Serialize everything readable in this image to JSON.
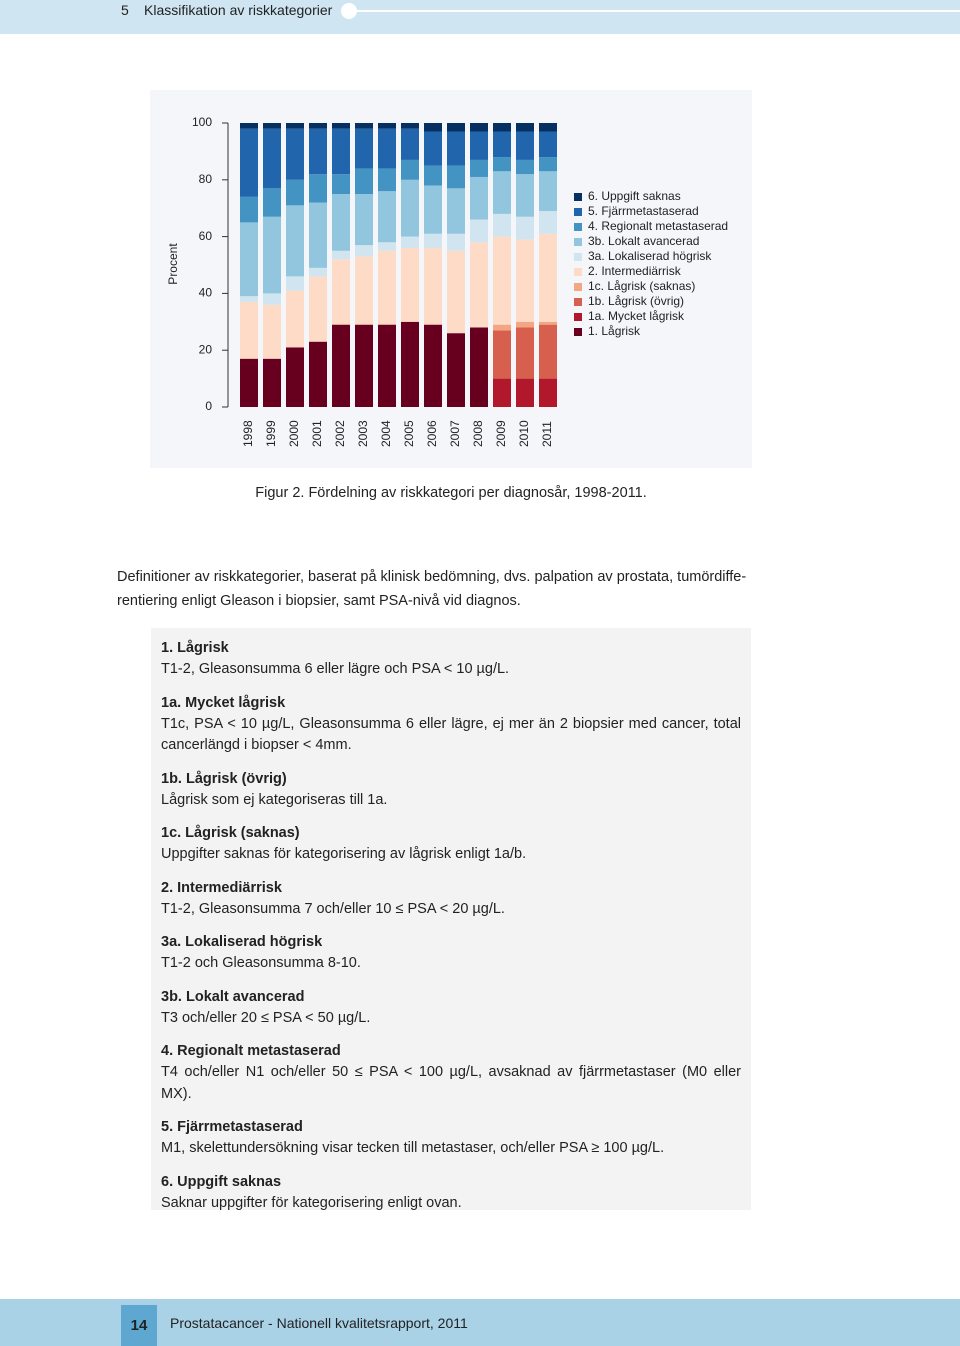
{
  "header": {
    "section": "5",
    "title": "Klassifikation av riskkategorier"
  },
  "chart_data": {
    "type": "stacked-bar",
    "y_label": "Procent",
    "categories": [
      "1998",
      "1999",
      "2000",
      "2001",
      "2002",
      "2003",
      "2004",
      "2005",
      "2006",
      "2007",
      "2008",
      "2009",
      "2010",
      "2011"
    ],
    "ylim": [
      0,
      100
    ],
    "yticks": [
      0,
      20,
      40,
      60,
      80,
      100
    ],
    "series": [
      {
        "name": "1. Lågrisk",
        "color": "#67001f",
        "values": [
          17,
          17,
          21,
          23,
          29,
          29,
          29,
          30,
          29,
          26,
          28,
          0,
          0,
          0
        ]
      },
      {
        "name": "1a. Mycket lågrisk",
        "color": "#b2182b",
        "values": [
          0,
          0,
          0,
          0,
          0,
          0,
          0,
          0,
          0,
          0,
          0,
          10,
          10,
          10
        ]
      },
      {
        "name": "1b. Lågrisk (övrig)",
        "color": "#d6604d",
        "values": [
          0,
          0,
          0,
          0,
          0,
          0,
          0,
          0,
          0,
          0,
          0,
          17,
          18,
          19
        ]
      },
      {
        "name": "1c. Lågrisk (saknas)",
        "color": "#f4a582",
        "values": [
          0,
          0,
          0,
          0,
          0,
          0,
          0,
          0,
          0,
          0,
          0,
          2,
          2,
          1
        ]
      },
      {
        "name": "2. Intermediärrisk",
        "color": "#fddbc7",
        "values": [
          20,
          19,
          20,
          23,
          23,
          24,
          26,
          26,
          27,
          29,
          30,
          31,
          29,
          31
        ]
      },
      {
        "name": "3a. Lokaliserad högrisk",
        "color": "#d1e5f0",
        "values": [
          2,
          4,
          5,
          3,
          3,
          4,
          3,
          4,
          5,
          6,
          8,
          8,
          8,
          8
        ]
      },
      {
        "name": "3b. Lokalt avancerad",
        "color": "#92c5de",
        "values": [
          26,
          27,
          25,
          23,
          20,
          18,
          18,
          20,
          17,
          16,
          15,
          15,
          15,
          14
        ]
      },
      {
        "name": "4. Regionalt metastaserad",
        "color": "#4393c3",
        "values": [
          9,
          10,
          9,
          10,
          7,
          9,
          8,
          7,
          7,
          8,
          6,
          5,
          5,
          5
        ]
      },
      {
        "name": "5. Fjärrmetastaserad",
        "color": "#2166ac",
        "values": [
          24,
          21,
          18,
          16,
          16,
          14,
          14,
          11,
          12,
          12,
          10,
          9,
          10,
          9
        ]
      },
      {
        "name": "6. Uppgift saknas",
        "color": "#053061",
        "values": [
          2,
          2,
          2,
          2,
          2,
          2,
          2,
          2,
          3,
          3,
          3,
          3,
          3,
          3
        ]
      }
    ]
  },
  "caption": "Figur 2. Fördelning av riskkategori per diagnosår, 1998-2011.",
  "intro": {
    "lines": [
      "Definitioner av riskkategorier, baserat på klinisk bedömning, dvs. palpation av prostata, tumördiffe-",
      "rentiering enligt Gleason i biopsier, samt PSA-nivå vid diagnos."
    ]
  },
  "definitions": [
    {
      "heading": "1. Lågrisk",
      "text": "T1-2, Gleasonsumma 6 eller lägre och PSA < 10 µg/L."
    },
    {
      "heading": "1a. Mycket lågrisk",
      "text": "T1c, PSA < 10 µg/L, Gleasonsumma 6 eller lägre, ej mer än 2 biopsier med cancer, total cancerlängd i biopser < 4mm."
    },
    {
      "heading": "1b. Lågrisk (övrig)",
      "text": "Lågrisk som ej kategoriseras till 1a."
    },
    {
      "heading": "1c. Lågrisk (saknas)",
      "text": "Uppgifter saknas för kategorisering av lågrisk enligt 1a/b."
    },
    {
      "heading": "2. Intermediärrisk",
      "text": "T1-2, Gleasonsumma 7 och/eller 10 ≤ PSA < 20 µg/L."
    },
    {
      "heading": "3a. Lokaliserad högrisk",
      "text": "T1-2 och Gleasonsumma 8-10."
    },
    {
      "heading": "3b. Lokalt avancerad",
      "text": "T3 och/eller 20 ≤ PSA < 50 µg/L."
    },
    {
      "heading": "4. Regionalt metastaserad",
      "text": "T4 och/eller N1 och/eller 50 ≤ PSA < 100 µg/L, avsaknad av fjärrmetastaser (M0 eller MX)."
    },
    {
      "heading": "5. Fjärrmetastaserad",
      "text": "M1, skelettundersökning visar tecken till metastaser, och/eller PSA ≥ 100 µg/L."
    },
    {
      "heading": "6. Uppgift saknas",
      "text": "Saknar uppgifter för kategorisering enligt ovan."
    }
  ],
  "footer": {
    "page": "14",
    "title": "Prostatacancer - Nationell kvalitetsrapport, 2011"
  }
}
